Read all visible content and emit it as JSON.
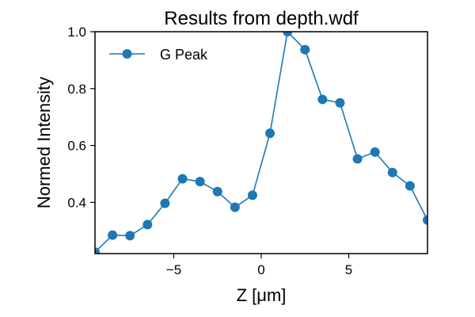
{
  "chart_data": {
    "type": "line",
    "title": "Results from depth.wdf",
    "xlabel": "Z [μm]",
    "ylabel": "Normed Intensity",
    "xlim": [
      -9.5,
      9.5
    ],
    "ylim": [
      0.22,
      1.0
    ],
    "xticks": [
      -5,
      0,
      5
    ],
    "xtick_labels": [
      "−5",
      "0",
      "5"
    ],
    "yticks": [
      0.4,
      0.6,
      0.8,
      1.0
    ],
    "ytick_labels": [
      "0.4",
      "0.6",
      "0.8",
      "1.0"
    ],
    "grid": false,
    "legend_position": "upper-left",
    "series": [
      {
        "name": "G Peak",
        "color": "#1f77b4",
        "marker": "circle",
        "x": [
          -9.5,
          -8.5,
          -7.5,
          -6.5,
          -5.5,
          -4.5,
          -3.5,
          -2.5,
          -1.5,
          -0.5,
          0.5,
          1.5,
          2.5,
          3.5,
          4.5,
          5.5,
          6.5,
          7.5,
          8.5,
          9.5
        ],
        "y": [
          0.225,
          0.285,
          0.283,
          0.322,
          0.397,
          0.483,
          0.473,
          0.438,
          0.383,
          0.425,
          0.643,
          1.0,
          0.937,
          0.762,
          0.75,
          0.553,
          0.577,
          0.505,
          0.458,
          0.338
        ]
      }
    ]
  }
}
